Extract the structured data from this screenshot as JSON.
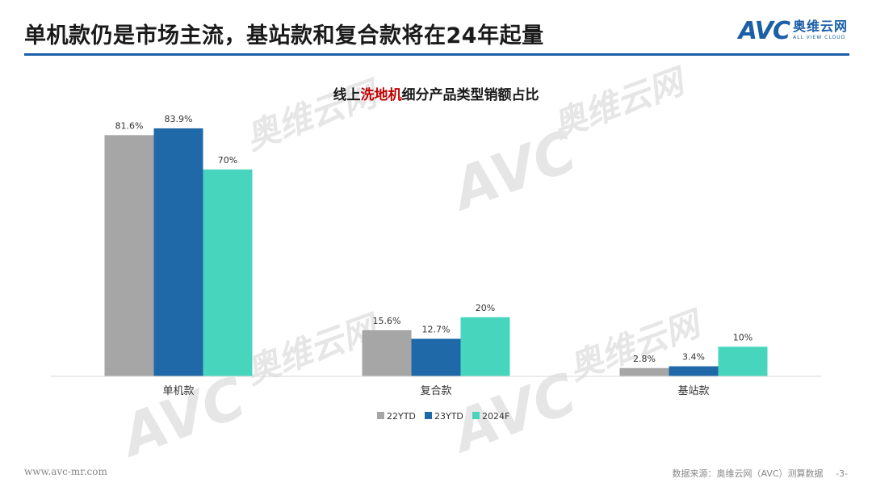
{
  "header": {
    "title": "单机款仍是市场主流，基站款和复合款将在24年起量"
  },
  "logo": {
    "mark": "AVC",
    "cn": "奥维云网",
    "en": "ALL VIEW CLOUD"
  },
  "chart_data": {
    "type": "bar",
    "title_parts": [
      "线上",
      "洗地机",
      "细分产品类型销额占比"
    ],
    "title_highlight_color": "#c00000",
    "categories": [
      "单机款",
      "复合款",
      "基站款"
    ],
    "series": [
      {
        "name": "22YTD",
        "color": "#a6a6a6",
        "values": [
          81.6,
          15.6,
          2.8
        ],
        "labels": [
          "81.6%",
          "15.6%",
          "2.8%"
        ]
      },
      {
        "name": "23YTD",
        "color": "#1f69a8",
        "values": [
          83.9,
          12.7,
          3.4
        ],
        "labels": [
          "83.9%",
          "12.7%",
          "3.4%"
        ]
      },
      {
        "name": "2024F",
        "color": "#47d6bd",
        "values": [
          70,
          20,
          10
        ],
        "labels": [
          "70%",
          "20%",
          "10%"
        ]
      }
    ],
    "ylim": [
      0,
      100
    ],
    "grid": false,
    "legend_position": "bottom"
  },
  "footer": {
    "url": "www.avc-mr.com",
    "source": "数据来源：奥维云网（AVC）测算数据",
    "page": "-3-"
  }
}
